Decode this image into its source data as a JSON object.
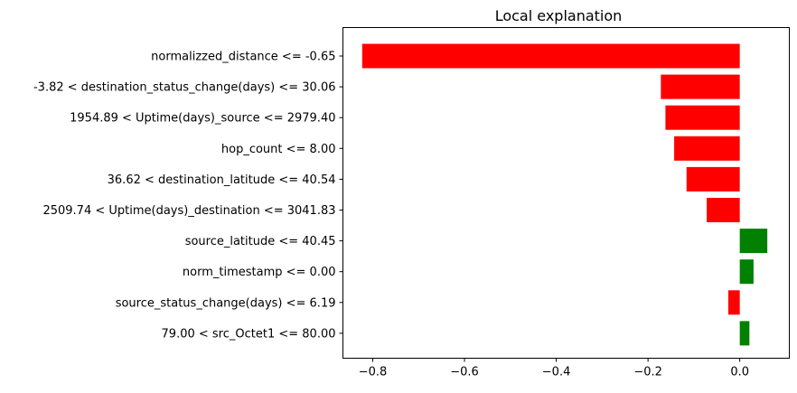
{
  "chart_data": {
    "type": "bar",
    "orientation": "horizontal",
    "title": "Local explanation",
    "xlabel": "",
    "ylabel": "",
    "categories": [
      "normalizzed_distance <= -0.65",
      "-3.82 < destination_status_change(days) <= 30.06",
      "1954.89 < Uptime(days)_source <= 2979.40",
      "hop_count <= 8.00",
      "36.62 < destination_latitude <= 40.54",
      "2509.74 < Uptime(days)_destination <= 3041.83",
      "source_latitude <= 40.45",
      "norm_timestamp <= 0.00",
      "source_status_change(days) <= 6.19",
      "79.00 < src_Octet1 <= 80.00"
    ],
    "values": [
      -0.823,
      -0.172,
      -0.162,
      -0.143,
      -0.116,
      -0.072,
      0.06,
      0.03,
      -0.025,
      0.021
    ],
    "xlim": [
      -0.865,
      0.108
    ],
    "xticks": [
      -0.8,
      -0.6,
      -0.4,
      -0.2,
      0.0
    ],
    "xtick_labels": [
      "−0.8",
      "−0.6",
      "−0.4",
      "−0.2",
      "0.0"
    ],
    "positive_color": "#008000",
    "negative_color": "#ff0000",
    "grid": false
  }
}
